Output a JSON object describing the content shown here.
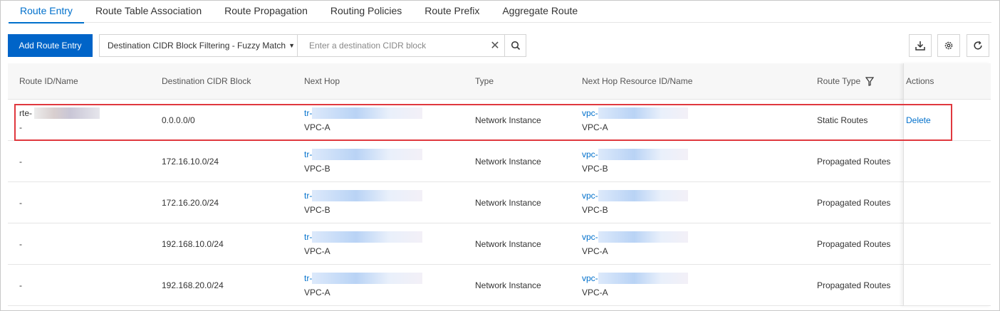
{
  "tabs": [
    "Route Entry",
    "Route Table Association",
    "Route Propagation",
    "Routing Policies",
    "Route Prefix",
    "Aggregate Route"
  ],
  "toolbar": {
    "add_label": "Add Route Entry",
    "filter_label": "Destination CIDR Block Filtering - Fuzzy Match",
    "search_placeholder": "Enter a destination CIDR block",
    "icons": [
      "download-icon",
      "settings-icon",
      "refresh-icon"
    ]
  },
  "table": {
    "headers": [
      "Route ID/Name",
      "Destination CIDR Block",
      "Next Hop",
      "Type",
      "Next Hop Resource ID/Name",
      "Route Type",
      "Actions"
    ],
    "rows": [
      {
        "id": "rte-",
        "name": "-",
        "cidr": "0.0.0.0/0",
        "next_hop_id": "tr-",
        "next_hop_name": "VPC-A",
        "type": "Network Instance",
        "resource_id": "vpc-",
        "resource_name": "VPC-A",
        "route_type": "Static Routes",
        "action": "Delete"
      },
      {
        "id": "-",
        "name": "",
        "cidr": "172.16.10.0/24",
        "next_hop_id": "tr-",
        "next_hop_name": "VPC-B",
        "type": "Network Instance",
        "resource_id": "vpc-",
        "resource_name": "VPC-B",
        "route_type": "Propagated Routes",
        "action": ""
      },
      {
        "id": "-",
        "name": "",
        "cidr": "172.16.20.0/24",
        "next_hop_id": "tr-",
        "next_hop_name": "VPC-B",
        "type": "Network Instance",
        "resource_id": "vpc-",
        "resource_name": "VPC-B",
        "route_type": "Propagated Routes",
        "action": ""
      },
      {
        "id": "-",
        "name": "",
        "cidr": "192.168.10.0/24",
        "next_hop_id": "tr-",
        "next_hop_name": "VPC-A",
        "type": "Network Instance",
        "resource_id": "vpc-",
        "resource_name": "VPC-A",
        "route_type": "Propagated Routes",
        "action": ""
      },
      {
        "id": "-",
        "name": "",
        "cidr": "192.168.20.0/24",
        "next_hop_id": "tr-",
        "next_hop_name": "VPC-A",
        "type": "Network Instance",
        "resource_id": "vpc-",
        "resource_name": "VPC-A",
        "route_type": "Propagated Routes",
        "action": ""
      }
    ]
  },
  "colors": {
    "accent": "#0064c8",
    "link": "#0070cc",
    "highlight": "#e0383e"
  }
}
